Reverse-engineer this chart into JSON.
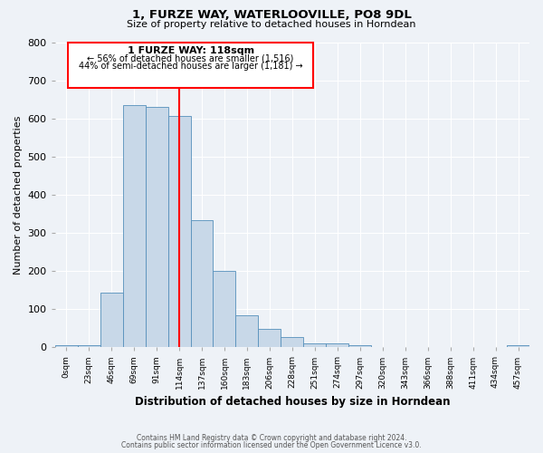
{
  "title": "1, FURZE WAY, WATERLOOVILLE, PO8 9DL",
  "subtitle": "Size of property relative to detached houses in Horndean",
  "xlabel": "Distribution of detached houses by size in Horndean",
  "ylabel": "Number of detached properties",
  "bin_labels": [
    "0sqm",
    "23sqm",
    "46sqm",
    "69sqm",
    "91sqm",
    "114sqm",
    "137sqm",
    "160sqm",
    "183sqm",
    "206sqm",
    "228sqm",
    "251sqm",
    "274sqm",
    "297sqm",
    "320sqm",
    "343sqm",
    "366sqm",
    "388sqm",
    "411sqm",
    "434sqm",
    "457sqm"
  ],
  "bar_heights": [
    5,
    5,
    143,
    636,
    630,
    607,
    333,
    200,
    84,
    47,
    27,
    10,
    10,
    5,
    0,
    0,
    0,
    0,
    0,
    0,
    5
  ],
  "bar_color": "#c8d8e8",
  "bar_edge_color": "#5590bb",
  "reference_line_x": 5,
  "annotation_title": "1 FURZE WAY: 118sqm",
  "annotation_line1": "← 56% of detached houses are smaller (1,516)",
  "annotation_line2": "44% of semi-detached houses are larger (1,181) →",
  "ylim": [
    0,
    800
  ],
  "yticks": [
    0,
    100,
    200,
    300,
    400,
    500,
    600,
    700,
    800
  ],
  "bg_color": "#eef2f7",
  "grid_color": "#ffffff",
  "footnote1": "Contains HM Land Registry data © Crown copyright and database right 2024.",
  "footnote2": "Contains public sector information licensed under the Open Government Licence v3.0."
}
